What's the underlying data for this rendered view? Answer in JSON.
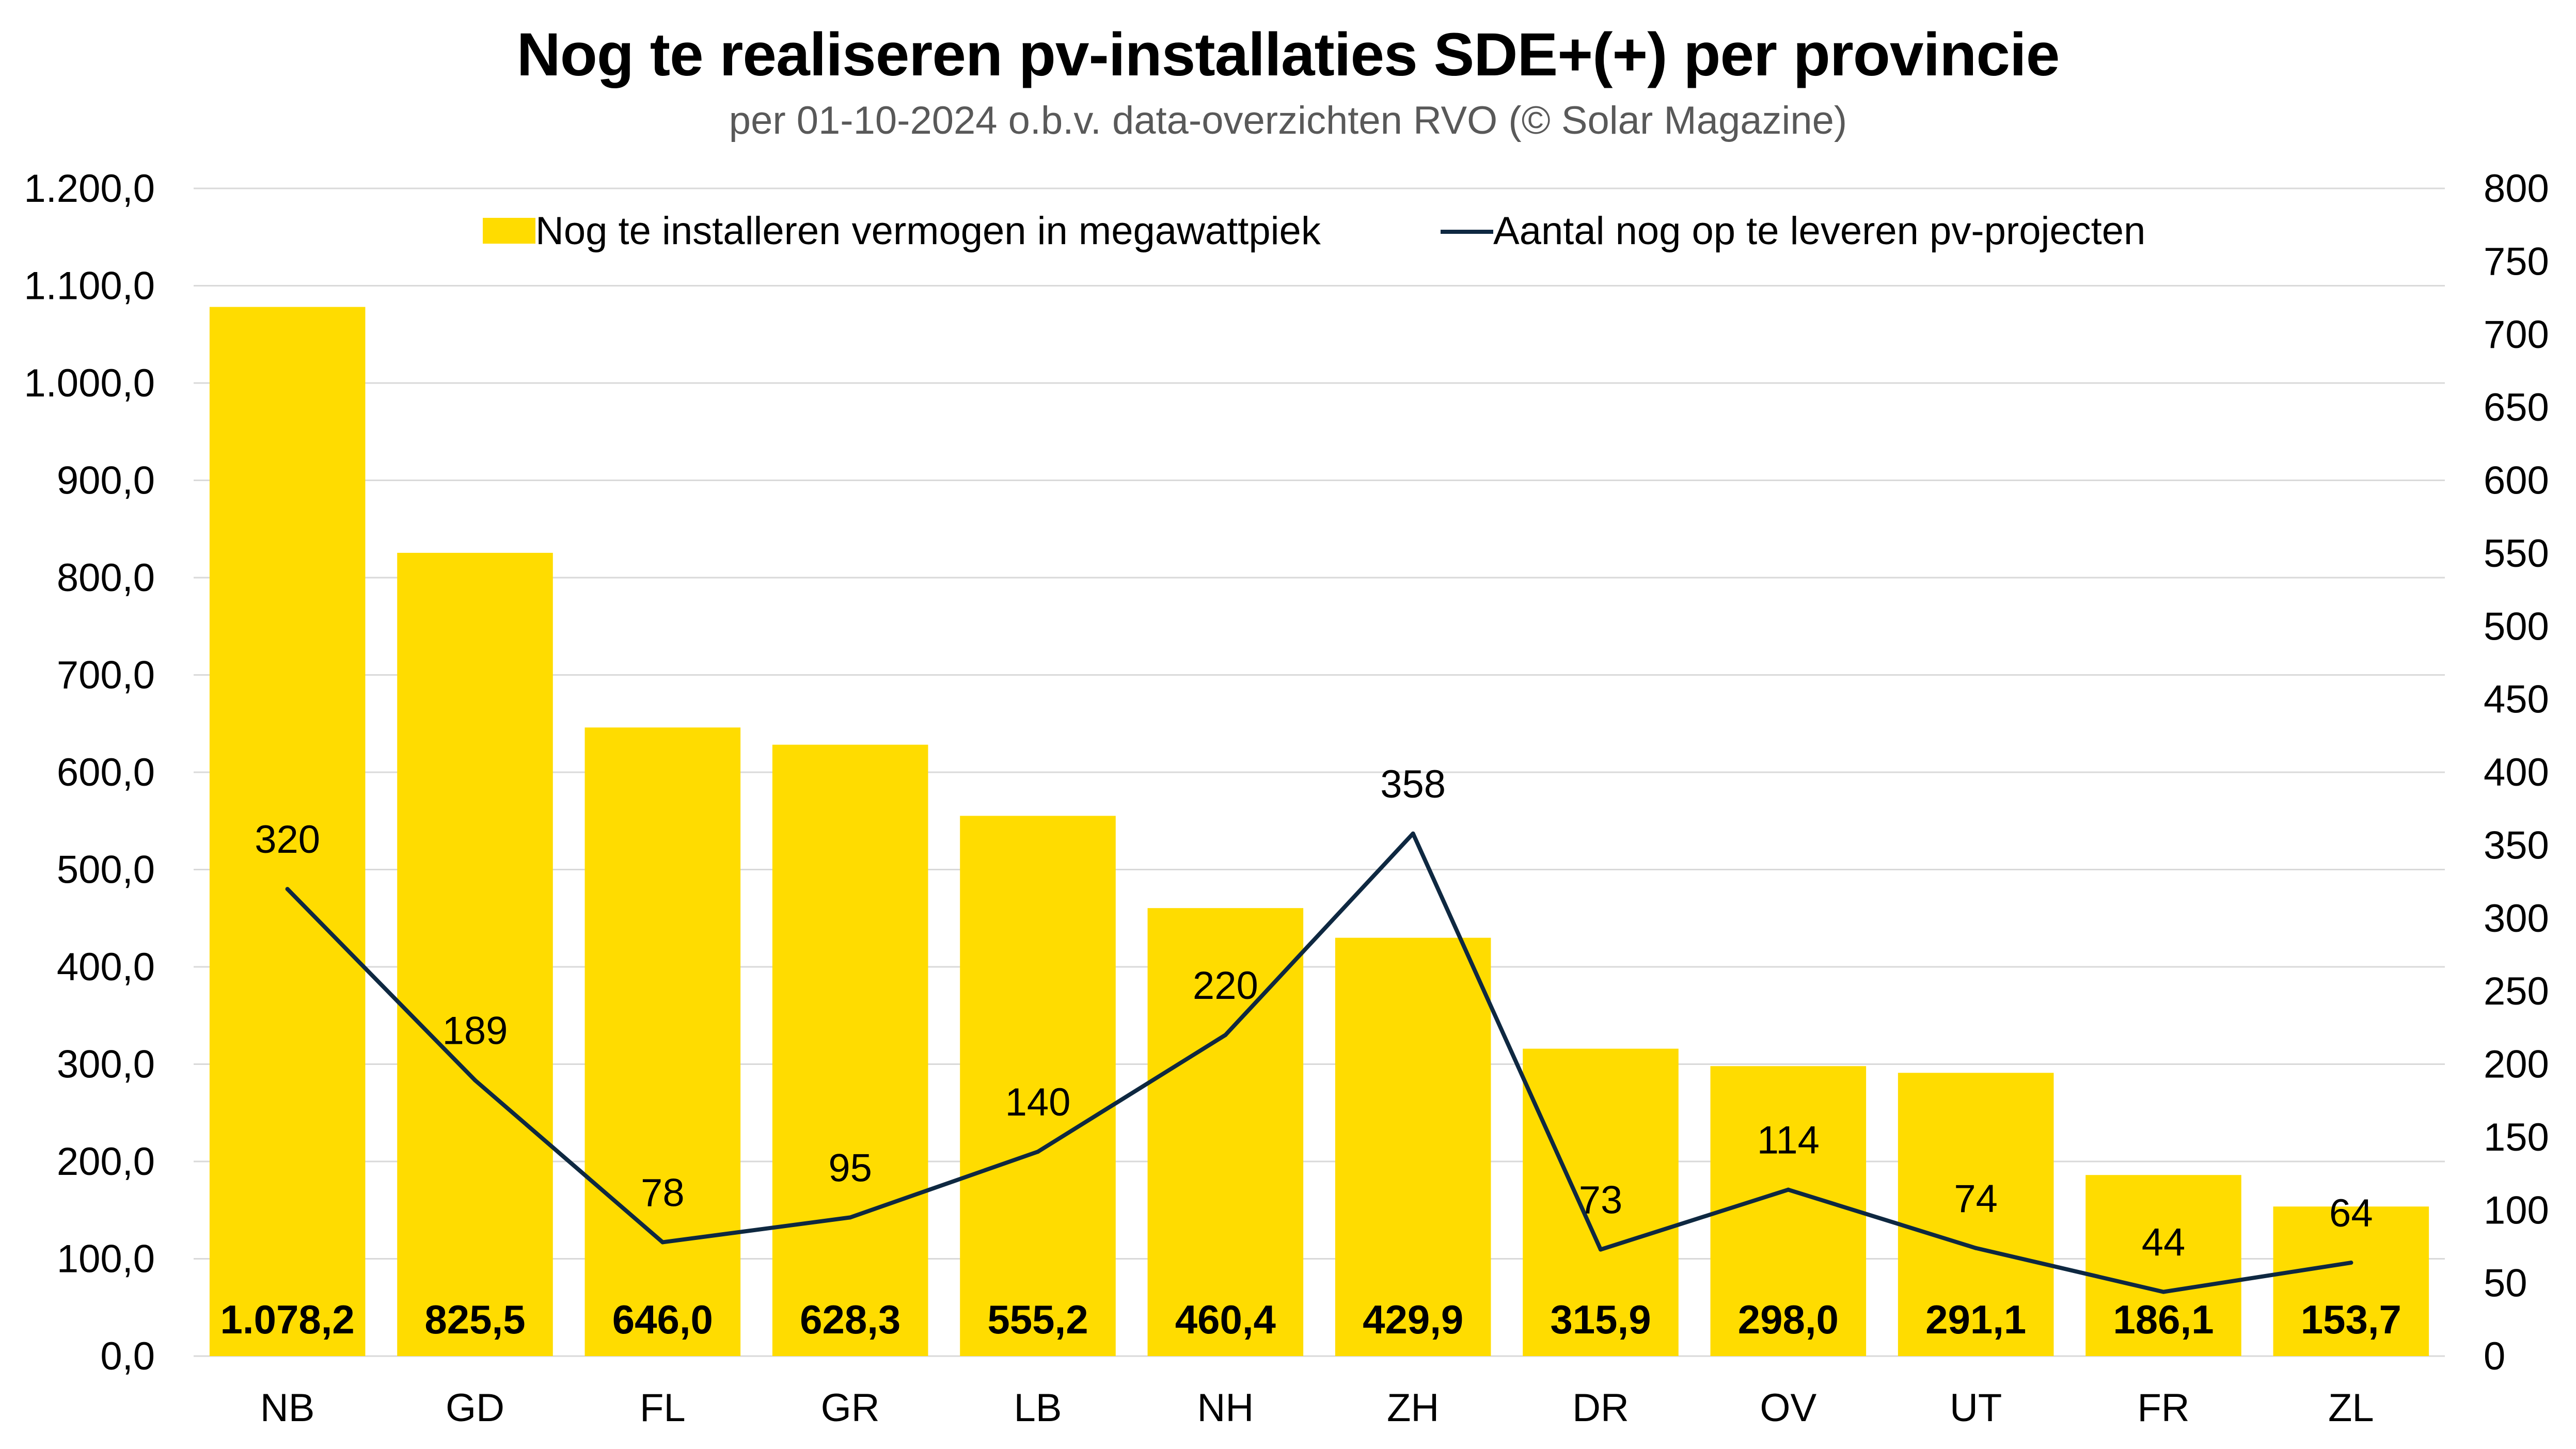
{
  "chart_data": {
    "type": "bar",
    "title": "Nog te realiseren pv-installaties SDE+(+) per provincie",
    "subtitle": "per 01-10-2024 o.b.v. data-overzichten RVO (© Solar Magazine)",
    "categories": [
      "NB",
      "GD",
      "FL",
      "GR",
      "LB",
      "NH",
      "ZH",
      "DR",
      "OV",
      "UT",
      "FR",
      "ZL"
    ],
    "series": [
      {
        "name": "Nog te installeren vermogen in megawattpiek",
        "type": "bar",
        "axis": "left",
        "color": "#FFDC00",
        "values": [
          1078.2,
          825.5,
          646.0,
          628.3,
          555.2,
          460.4,
          429.9,
          315.9,
          298.0,
          291.1,
          186.1,
          153.7
        ],
        "labels": [
          "1.078,2",
          "825,5",
          "646,0",
          "628,3",
          "555,2",
          "460,4",
          "429,9",
          "315,9",
          "298,0",
          "291,1",
          "186,1",
          "153,7"
        ]
      },
      {
        "name": "Aantal nog op te leveren pv-projecten",
        "type": "line",
        "axis": "right",
        "color": "#0E2841",
        "values": [
          320,
          189,
          78,
          95,
          140,
          220,
          358,
          73,
          114,
          74,
          44,
          64
        ],
        "labels": [
          "320",
          "189",
          "78",
          "95",
          "140",
          "220",
          "358",
          "73",
          "114",
          "74",
          "44",
          "64"
        ]
      }
    ],
    "y_left": {
      "min": 0,
      "max": 1200,
      "ticks": [
        0,
        100,
        200,
        300,
        400,
        500,
        600,
        700,
        800,
        900,
        1000,
        1100,
        1200
      ],
      "tick_labels": [
        "0,0",
        "100,0",
        "200,0",
        "300,0",
        "400,0",
        "500,0",
        "600,0",
        "700,0",
        "800,0",
        "900,0",
        "1.000,0",
        "1.100,0",
        "1.200,0"
      ]
    },
    "y_right": {
      "min": 0,
      "max": 800,
      "ticks": [
        0,
        50,
        100,
        150,
        200,
        250,
        300,
        350,
        400,
        450,
        500,
        550,
        600,
        650,
        700,
        750,
        800
      ],
      "tick_labels": [
        "0",
        "50",
        "100",
        "150",
        "200",
        "250",
        "300",
        "350",
        "400",
        "450",
        "500",
        "550",
        "600",
        "650",
        "700",
        "750",
        "800"
      ]
    },
    "grid": true,
    "legend_position": "top"
  }
}
